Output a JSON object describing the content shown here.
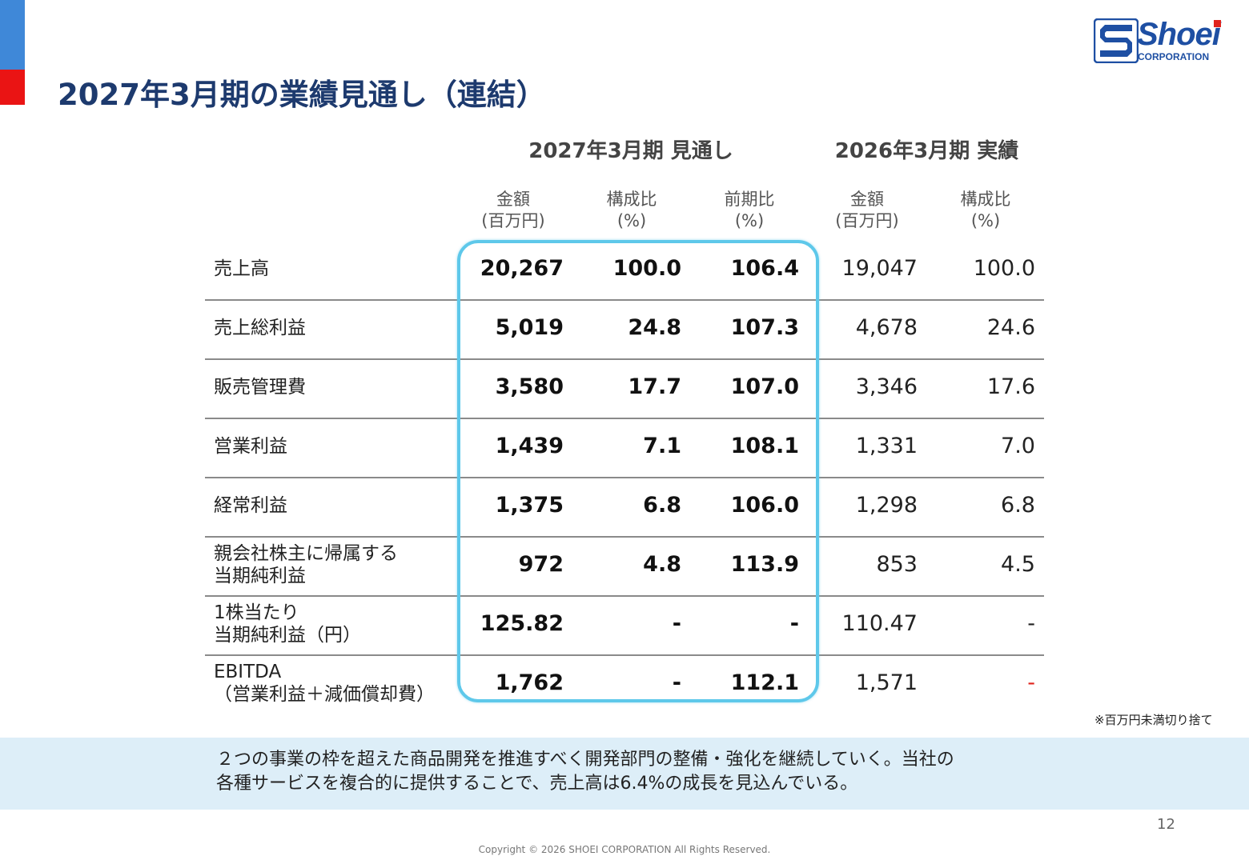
{
  "title": "2027年3月期の業績見通し（連結）",
  "logo": {
    "name": "Shoei",
    "sub": "CORPORATION",
    "brand_color": "#1e4fa3",
    "accent_color": "#e0231c"
  },
  "table": {
    "group_headers": {
      "forecast": "2027年3月期 見通し",
      "actual": "2026年3月期 実績"
    },
    "column_headers": [
      {
        "line1": "金額",
        "line2": "(百万円)"
      },
      {
        "line1": "構成比",
        "line2": "(%)"
      },
      {
        "line1": "前期比",
        "line2": "(%)"
      },
      {
        "line1": "金額",
        "line2": "(百万円)"
      },
      {
        "line1": "構成比",
        "line2": "(%)"
      }
    ],
    "rows": [
      {
        "label1": "売上高",
        "label2": "",
        "forecast_amount": "20,267",
        "forecast_ratio": "100.0",
        "yoy": "106.4",
        "actual_amount": "19,047",
        "actual_ratio": "100.0"
      },
      {
        "label1": "売上総利益",
        "label2": "",
        "forecast_amount": "5,019",
        "forecast_ratio": "24.8",
        "yoy": "107.3",
        "actual_amount": "4,678",
        "actual_ratio": "24.6"
      },
      {
        "label1": "販売管理費",
        "label2": "",
        "forecast_amount": "3,580",
        "forecast_ratio": "17.7",
        "yoy": "107.0",
        "actual_amount": "3,346",
        "actual_ratio": "17.6"
      },
      {
        "label1": "営業利益",
        "label2": "",
        "forecast_amount": "1,439",
        "forecast_ratio": "7.1",
        "yoy": "108.1",
        "actual_amount": "1,331",
        "actual_ratio": "7.0"
      },
      {
        "label1": "経常利益",
        "label2": "",
        "forecast_amount": "1,375",
        "forecast_ratio": "6.8",
        "yoy": "106.0",
        "actual_amount": "1,298",
        "actual_ratio": "6.8"
      },
      {
        "label1": "親会社株主に帰属する",
        "label2": "当期純利益",
        "forecast_amount": "972",
        "forecast_ratio": "4.8",
        "yoy": "113.9",
        "actual_amount": "853",
        "actual_ratio": "4.5"
      },
      {
        "label1": "1株当たり",
        "label2": "当期純利益（円）",
        "forecast_amount": "125.82",
        "forecast_ratio": "-",
        "yoy": "-",
        "actual_amount": "110.47",
        "actual_ratio": "-"
      },
      {
        "label1": "EBITDA",
        "label2": "（営業利益＋減価償却費）",
        "forecast_amount": "1,762",
        "forecast_ratio": "-",
        "yoy": "112.1",
        "actual_amount": "1,571",
        "actual_ratio": "-"
      }
    ]
  },
  "note": "※百万円未満切り捨て",
  "summary": {
    "line1": "２つの事業の枠を超えた商品開発を推進すべく開発部門の整備・強化を継続していく。当社の",
    "line2": "各種サービスを複合的に提供することで、売上高は6.4%の成長を見込んでいる。"
  },
  "page_number": "12",
  "copyright": "Copyright © 2026 SHOEI CORPORATION All Rights Reserved.",
  "colors": {
    "title": "#1d3a6e",
    "highlight_border": "#5ec8ea",
    "summary_band": "#ddeef8",
    "accent_blue": "#3f88d8",
    "accent_red": "#ea1414"
  }
}
